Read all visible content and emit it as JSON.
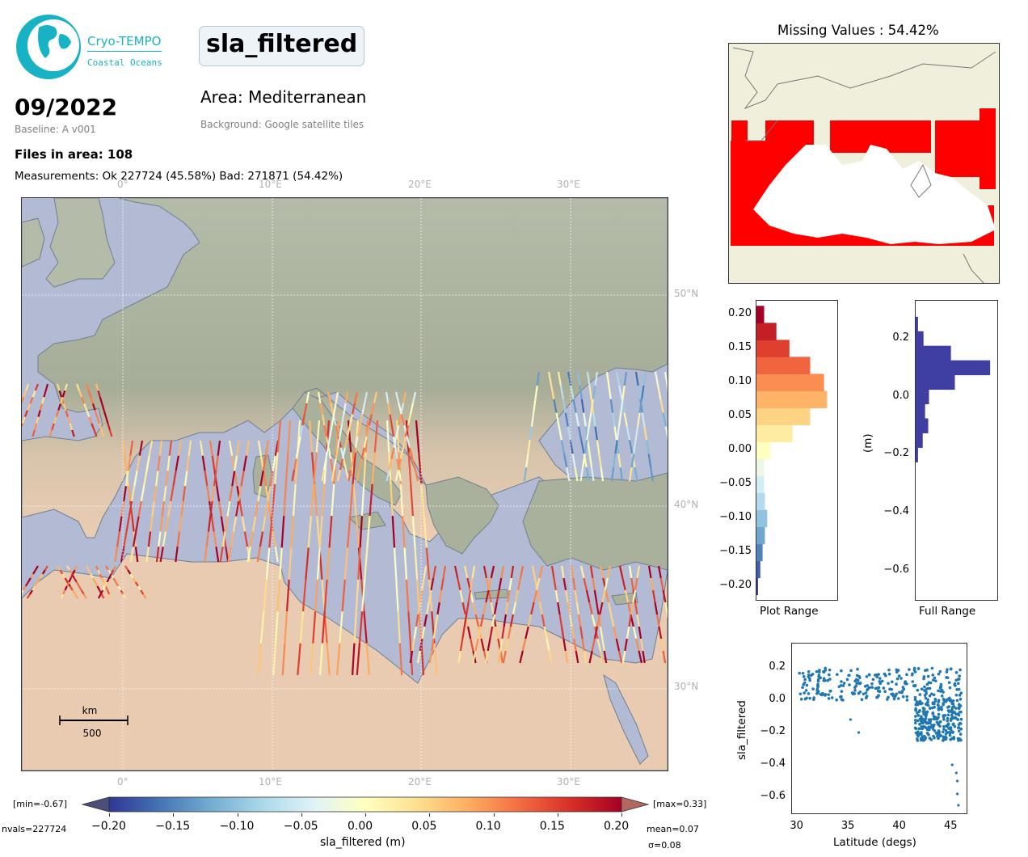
{
  "logo": {
    "line1": "Cryo-TEMPO",
    "line2": "Coastal Oceans"
  },
  "header": {
    "variable": "sla_filtered",
    "date": "09/2022",
    "baseline": "Baseline: A v001",
    "area": "Area: Mediterranean",
    "background": "Background: Google satellite tiles",
    "files": "Files in area: 108",
    "measurements": "Measurements: Ok 227724 (45.58%) Bad: 271871 (54.42%)"
  },
  "map": {
    "lon_ticks": [
      "0°",
      "10°E",
      "20°E",
      "30°E"
    ],
    "lat_ticks": [
      "50°N",
      "40°N",
      "30°N"
    ],
    "scalebar_unit": "km",
    "scalebar_value": "500",
    "colors": {
      "ocean": "#b3bbd4",
      "land": "#a3ae9c",
      "desert": "#e6c4a6",
      "coast": "#6f7f8f"
    }
  },
  "colorbar": {
    "label": "sla_filtered (m)",
    "ticks": [
      "−0.20",
      "−0.15",
      "−0.10",
      "−0.05",
      "0.00",
      "0.05",
      "0.10",
      "0.15",
      "0.20"
    ],
    "min_label": "[min=-0.67]",
    "max_label": "[max=0.33]",
    "nvals": "nvals=227724",
    "mean": "mean=0.07",
    "sigma": "σ=0.08",
    "colors": [
      "#313695",
      "#4575b4",
      "#74add1",
      "#abd9e9",
      "#e0f3f8",
      "#ffffbf",
      "#fee090",
      "#fdae61",
      "#f46d43",
      "#d73027",
      "#a50026"
    ]
  },
  "missing_panel": {
    "title": "Missing Values : 54.42%",
    "colors": {
      "land": "#efefdb",
      "missing": "#ff0000"
    }
  },
  "hist_plot": {
    "yticks": [
      "0.20",
      "0.15",
      "0.10",
      "0.05",
      "0.00",
      "−0.05",
      "−0.10",
      "−0.15",
      "−0.20"
    ],
    "xlabel": "Plot Range"
  },
  "hist_full": {
    "yticks": [
      "0.2",
      "0.0",
      "−0.2",
      "−0.4",
      "−0.6"
    ],
    "ylabel": "(m)",
    "xlabel": "Full Range",
    "color": "#3f3fa3"
  },
  "scatter": {
    "xticks": [
      "30",
      "35",
      "40",
      "45"
    ],
    "yticks": [
      "0.2",
      "0.0",
      "−0.2",
      "−0.4",
      "−0.6"
    ],
    "xlabel": "Latitude (degs)",
    "ylabel": "sla_filtered",
    "color": "#1f77b4"
  },
  "chart_data": [
    {
      "type": "bar",
      "orientation": "horizontal",
      "title": "",
      "xlabel": "Plot Range",
      "ylim": [
        -0.22,
        0.22
      ],
      "bin_centers": [
        -0.2,
        -0.175,
        -0.15,
        -0.125,
        -0.1,
        -0.075,
        -0.05,
        -0.025,
        0.0,
        0.025,
        0.05,
        0.075,
        0.1,
        0.125,
        0.15,
        0.175,
        0.2
      ],
      "relative_counts": [
        0.02,
        0.05,
        0.08,
        0.11,
        0.14,
        0.11,
        0.1,
        0.1,
        0.18,
        0.47,
        0.7,
        0.92,
        0.88,
        0.7,
        0.43,
        0.26,
        0.1
      ]
    },
    {
      "type": "bar",
      "orientation": "horizontal",
      "xlabel": "Full Range",
      "ylabel": "(m)",
      "ylim": [
        -0.7,
        0.33
      ],
      "bin_centers": [
        0.25,
        0.2,
        0.15,
        0.1,
        0.05,
        0.0,
        -0.05,
        -0.1,
        -0.15,
        -0.2
      ],
      "relative_counts": [
        0.03,
        0.1,
        0.45,
        0.95,
        0.5,
        0.17,
        0.12,
        0.16,
        0.09,
        0.03
      ]
    },
    {
      "type": "scatter",
      "xlabel": "Latitude (degs)",
      "ylabel": "sla_filtered",
      "xlim": [
        29.5,
        46.5
      ],
      "ylim": [
        -0.7,
        0.35
      ],
      "bands": [
        {
          "x": [
            30.2,
            46.0
          ],
          "y": [
            0.0,
            0.2
          ]
        },
        {
          "x": [
            41.5,
            46.0
          ],
          "y": [
            -0.25,
            0.0
          ]
        }
      ],
      "outliers": [
        {
          "x": 45.5,
          "y": -0.45
        },
        {
          "x": 45.6,
          "y": -0.5
        },
        {
          "x": 45.6,
          "y": -0.58
        },
        {
          "x": 45.7,
          "y": -0.65
        },
        {
          "x": 45.1,
          "y": -0.4
        },
        {
          "x": 36.0,
          "y": -0.2
        },
        {
          "x": 35.2,
          "y": -0.12
        }
      ]
    }
  ]
}
